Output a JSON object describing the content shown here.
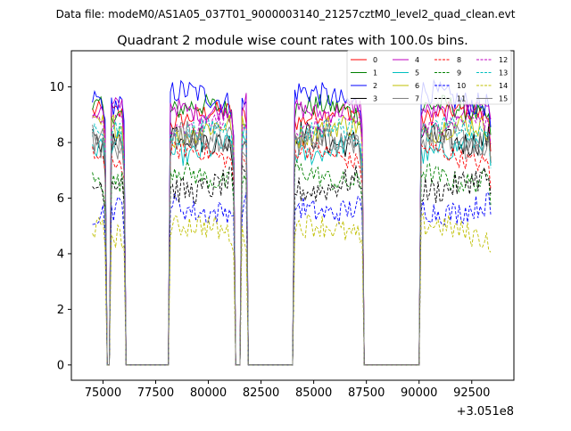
{
  "chart_data": {
    "type": "line",
    "suptitle": "Data file: modeM0/AS1A05_037T01_9000003140_21257cztM0_level2_quad_clean.evt",
    "title": "Quadrant 2 module wise count rates with 100.0s bins.",
    "xlabel": "",
    "ylabel": "",
    "x_offset_label": "+3.051e8",
    "xlim": [
      73500,
      94500
    ],
    "ylim": [
      -0.55,
      11.3
    ],
    "xticks": [
      75000,
      77500,
      80000,
      82500,
      85000,
      87500,
      90000,
      92500
    ],
    "yticks": [
      0,
      2,
      4,
      6,
      8,
      10
    ],
    "legend": {
      "placement": "top-right",
      "columns": 4
    },
    "x_segments": [
      {
        "start": 74500,
        "end": 75100
      },
      {
        "start": 75400,
        "end": 76000
      },
      {
        "start": 78200,
        "end": 81200
      },
      {
        "start": 81600,
        "end": 81800
      },
      {
        "start": 84100,
        "end": 87300
      },
      {
        "start": 90100,
        "end": 93400
      }
    ],
    "series": [
      {
        "name": "0",
        "color": "#ff0000",
        "dash": "solid",
        "level": 8.9
      },
      {
        "name": "1",
        "color": "#008000",
        "dash": "solid",
        "level": 9.1
      },
      {
        "name": "2",
        "color": "#0000ff",
        "dash": "solid",
        "level": 9.6
      },
      {
        "name": "3",
        "color": "#000000",
        "dash": "solid",
        "level": 8.2
      },
      {
        "name": "4",
        "color": "#bf00bf",
        "dash": "solid",
        "level": 9.3
      },
      {
        "name": "5",
        "color": "#00bfbf",
        "dash": "solid",
        "level": 7.8
      },
      {
        "name": "6",
        "color": "#bfbf00",
        "dash": "solid",
        "level": 8.4
      },
      {
        "name": "7",
        "color": "#808080",
        "dash": "solid",
        "level": 8.0
      },
      {
        "name": "8",
        "color": "#ff0000",
        "dash": "dashed",
        "level": 7.5
      },
      {
        "name": "9",
        "color": "#008000",
        "dash": "dashed",
        "level": 6.8
      },
      {
        "name": "10",
        "color": "#0000ff",
        "dash": "dashed",
        "level": 5.7
      },
      {
        "name": "11",
        "color": "#000000",
        "dash": "dashed",
        "level": 6.5
      },
      {
        "name": "12",
        "color": "#bf00bf",
        "dash": "dashed",
        "level": 8.6
      },
      {
        "name": "13",
        "color": "#00bfbf",
        "dash": "dashed",
        "level": 8.3
      },
      {
        "name": "14",
        "color": "#bfbf00",
        "dash": "dashed",
        "level": 4.8
      },
      {
        "name": "15",
        "color": "#808080",
        "dash": "solid",
        "level": 8.1
      }
    ]
  }
}
